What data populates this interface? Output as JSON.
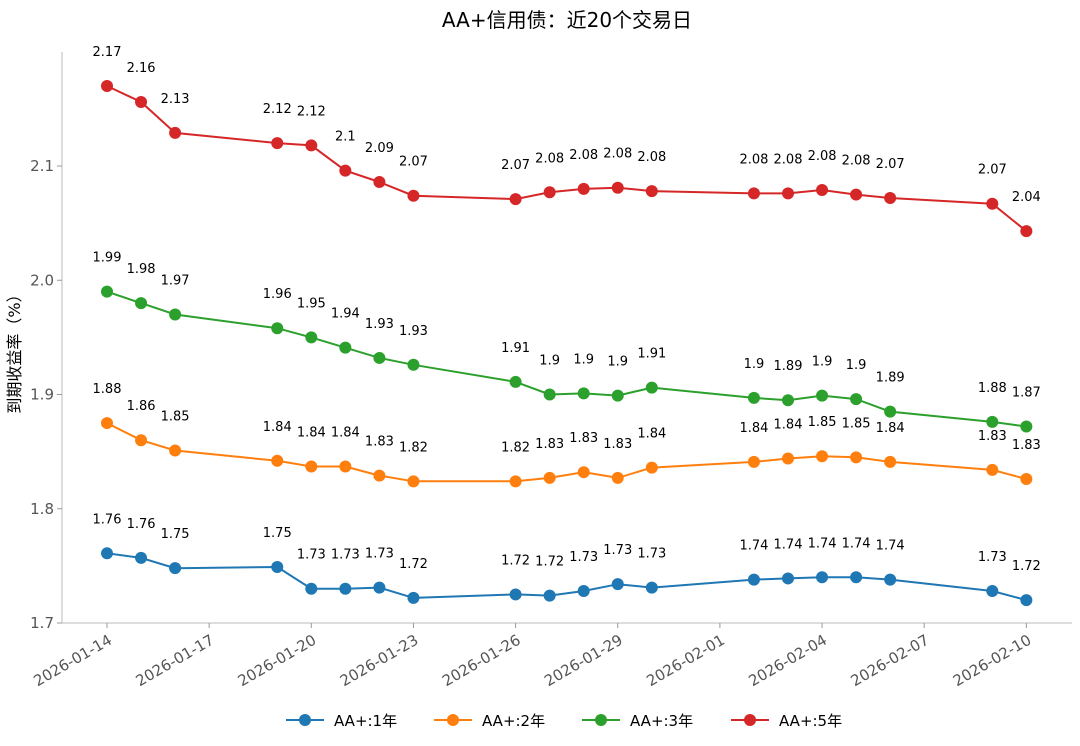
{
  "chart_data": {
    "type": "line",
    "title": "AA+信用债：近20个交易日",
    "xlabel": "",
    "ylabel": "到期收益率（%）",
    "ylim": [
      1.7,
      2.2
    ],
    "yticks": [
      1.7,
      1.8,
      1.9,
      2.0,
      2.1
    ],
    "ytick_labels": [
      "1.7",
      "1.8",
      "1.9",
      "2.0",
      "2.1"
    ],
    "xticks": [
      "2026-01-14",
      "2026-01-17",
      "2026-01-20",
      "2026-01-23",
      "2026-01-26",
      "2026-01-29",
      "2026-02-01",
      "2026-02-04",
      "2026-02-07",
      "2026-02-10"
    ],
    "x": [
      "2026-01-14",
      "2026-01-15",
      "2026-01-16",
      "2026-01-19",
      "2026-01-20",
      "2026-01-21",
      "2026-01-22",
      "2026-01-23",
      "2026-01-26",
      "2026-01-27",
      "2026-01-28",
      "2026-01-29",
      "2026-01-30",
      "2026-02-02",
      "2026-02-03",
      "2026-02-04",
      "2026-02-05",
      "2026-02-06",
      "2026-02-09",
      "2026-02-10"
    ],
    "series": [
      {
        "name": "AA+:1年",
        "color": "#1f77b4",
        "values": [
          1.761,
          1.757,
          1.748,
          1.749,
          1.73,
          1.73,
          1.731,
          1.722,
          1.725,
          1.724,
          1.728,
          1.734,
          1.731,
          1.738,
          1.739,
          1.74,
          1.74,
          1.738,
          1.728,
          1.72
        ],
        "labels": [
          "1.76",
          "1.76",
          "1.75",
          "1.75",
          "1.73",
          "1.73",
          "1.73",
          "1.72",
          "1.72",
          "1.72",
          "1.73",
          "1.73",
          "1.73",
          "1.74",
          "1.74",
          "1.74",
          "1.74",
          "1.74",
          "1.73",
          "1.72"
        ]
      },
      {
        "name": "AA+:2年",
        "color": "#ff7f0e",
        "values": [
          1.875,
          1.86,
          1.851,
          1.842,
          1.837,
          1.837,
          1.829,
          1.824,
          1.824,
          1.827,
          1.832,
          1.827,
          1.836,
          1.841,
          1.844,
          1.846,
          1.845,
          1.841,
          1.834,
          1.826
        ],
        "labels": [
          "1.88",
          "1.86",
          "1.85",
          "1.84",
          "1.84",
          "1.84",
          "1.83",
          "1.82",
          "1.82",
          "1.83",
          "1.83",
          "1.83",
          "1.84",
          "1.84",
          "1.84",
          "1.85",
          "1.85",
          "1.84",
          "1.83",
          "1.83"
        ]
      },
      {
        "name": "AA+:3年",
        "color": "#2ca02c",
        "values": [
          1.99,
          1.98,
          1.97,
          1.958,
          1.95,
          1.941,
          1.932,
          1.926,
          1.911,
          1.9,
          1.901,
          1.899,
          1.906,
          1.897,
          1.895,
          1.899,
          1.896,
          1.885,
          1.876,
          1.872
        ],
        "labels": [
          "1.99",
          "1.98",
          "1.97",
          "1.96",
          "1.95",
          "1.94",
          "1.93",
          "1.93",
          "1.91",
          "1.9",
          "1.9",
          "1.9",
          "1.91",
          "1.9",
          "1.89",
          "1.9",
          "1.9",
          "1.89",
          "1.88",
          "1.87"
        ]
      },
      {
        "name": "AA+:5年",
        "color": "#d62728",
        "values": [
          2.17,
          2.156,
          2.129,
          2.12,
          2.118,
          2.096,
          2.086,
          2.074,
          2.071,
          2.077,
          2.08,
          2.081,
          2.078,
          2.076,
          2.076,
          2.079,
          2.075,
          2.072,
          2.067,
          2.043
        ],
        "labels": [
          "2.17",
          "2.16",
          "2.13",
          "2.12",
          "2.12",
          "2.1",
          "2.09",
          "2.07",
          "2.07",
          "2.08",
          "2.08",
          "2.08",
          "2.08",
          "2.08",
          "2.08",
          "2.08",
          "2.08",
          "2.07",
          "2.07",
          "2.04"
        ]
      }
    ],
    "legend": {
      "position": "bottom"
    },
    "grid": false
  }
}
